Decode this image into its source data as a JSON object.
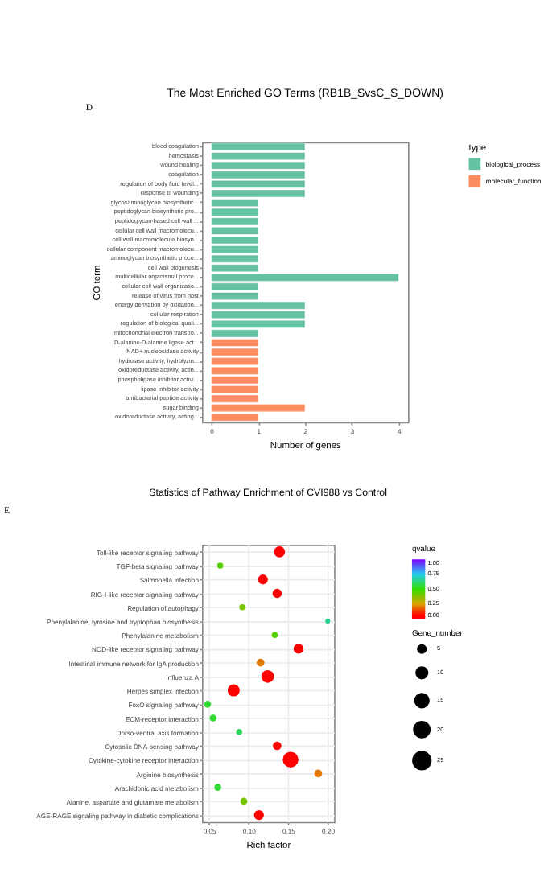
{
  "chart_data": [
    {
      "type": "bar",
      "orientation": "horizontal",
      "title": "The Most Enriched GO Terms (RB1B_SvsC_S_DOWN)",
      "xlabel": "Number of genes",
      "ylabel": "GO term",
      "legend_title": "type",
      "legend": "right",
      "annotations": [
        "D"
      ],
      "categories": [
        "blood coagulation",
        "hemostasis",
        "wound healing",
        "coagulation",
        "regulation of body fluid level...",
        "response to wounding",
        "glycosaminoglycan biosynthetic...",
        "peptidoglycan biosynthetic pro...",
        "peptidoglycan-based cell wall ...",
        "cellular cell wall macromolecu...",
        "cell wall macromolecule biosyn...",
        "cellular component macromolecu...",
        "aminoglycan biosynthetic proce...",
        "cell wall biogenesis",
        "multicellular organismal proce...",
        "cellular cell wall organizatio...",
        "release of virus from host",
        "energy derivation by oxidation...",
        "cellular respiration",
        "regulation of biological quali...",
        "mitochondrial electron transpo...",
        "D-alanine-D-alanine ligase act...",
        "NAD+ nucleosidase activity",
        "hydrolase activity, hydrolyzin...",
        "oxidoreductase activity, actin...",
        "phospholipase inhibitor activi...",
        "lipase inhibitor activity",
        "antibacterial peptide activity",
        "sugar binding",
        "oxidoreductase activity, acting..."
      ],
      "series": [
        {
          "name": "biological_process",
          "color": "#66c2a5",
          "values": [
            2,
            2,
            2,
            2,
            2,
            2,
            1,
            1,
            1,
            1,
            1,
            1,
            1,
            1,
            4,
            1,
            1,
            2,
            2,
            2,
            1,
            null,
            null,
            null,
            null,
            null,
            null,
            null,
            null,
            null
          ]
        },
        {
          "name": "molecular_function",
          "color": "#fc8d62",
          "values": [
            null,
            null,
            null,
            null,
            null,
            null,
            null,
            null,
            null,
            null,
            null,
            null,
            null,
            null,
            null,
            null,
            null,
            null,
            null,
            null,
            null,
            1,
            1,
            1,
            1,
            1,
            1,
            1,
            2,
            1
          ]
        }
      ],
      "xlim": [
        -0.2,
        4.2
      ],
      "xticks": [
        0,
        1,
        2,
        3,
        4
      ]
    },
    {
      "type": "bubble",
      "orientation": "horizontal",
      "title": "Statistics of Pathway Enrichment of CVI988 vs Control",
      "xlabel": "Rich factor",
      "clabel": "qvalue",
      "legend_title": "Gene_number",
      "grid": true,
      "annotations": [
        "E"
      ],
      "categories": [
        "Toll-like receptor signaling pathway",
        "TGF-beta signaling pathway",
        "Salmonella infection",
        "RIG-I-like receptor signaling pathway",
        "Regulation of autophagy",
        "Phenylalanine, tyrosine and tryptophan biosynthesis",
        "Phenylalanine metabolism",
        "NOD-like receptor signaling pathway",
        "Intestinal immune network for IgA production",
        "Influenza A",
        "Herpes simplex infection",
        "FoxO signaling pathway",
        "ECM-receptor interaction",
        "Dorso-ventral axis formation",
        "Cytosolic DNA-sensing pathway",
        "Cytokine-cytokine receptor interaction",
        "Arginine biosynthesis",
        "Arachidonic acid metabolism",
        "Alanine, aspartate and glutamate metabolism",
        "AGE-RAGE signaling pathway in diabetic complications"
      ],
      "values": [
        0.139,
        0.064,
        0.118,
        0.136,
        0.092,
        0.2,
        0.133,
        0.163,
        0.115,
        0.124,
        0.081,
        0.048,
        0.055,
        0.088,
        0.136,
        0.153,
        0.188,
        0.061,
        0.094,
        0.113
      ],
      "sizes": [
        10,
        3,
        8,
        7,
        3,
        2,
        3,
        8,
        5,
        13,
        12,
        4,
        4,
        3,
        6,
        20,
        5,
        4,
        4,
        8
      ],
      "cvalues": [
        0,
        0.45,
        0,
        0,
        0.4,
        0.65,
        0.45,
        0,
        0.2,
        0,
        0,
        0.55,
        0.55,
        0.6,
        0,
        0,
        0.2,
        0.55,
        0.4,
        0
      ],
      "size_legend": [
        5,
        10,
        15,
        20,
        25
      ],
      "clim": [
        0,
        1
      ],
      "cticks": [
        {
          "value": 0,
          "label": "0.00"
        },
        {
          "value": 0.25,
          "label": "0.25"
        },
        {
          "value": 0.5,
          "label": "0.50"
        },
        {
          "value": 0.75,
          "label": "0.75"
        },
        {
          "value": 1,
          "label": "1.00"
        }
      ],
      "xlim": [
        0.041,
        0.208
      ],
      "xticks": [
        {
          "value": 0.05,
          "label": "0.05"
        },
        {
          "value": 0.1,
          "label": "0.10"
        },
        {
          "value": 0.15,
          "label": "0.15"
        },
        {
          "value": 0.2,
          "label": "0.20"
        }
      ]
    }
  ]
}
